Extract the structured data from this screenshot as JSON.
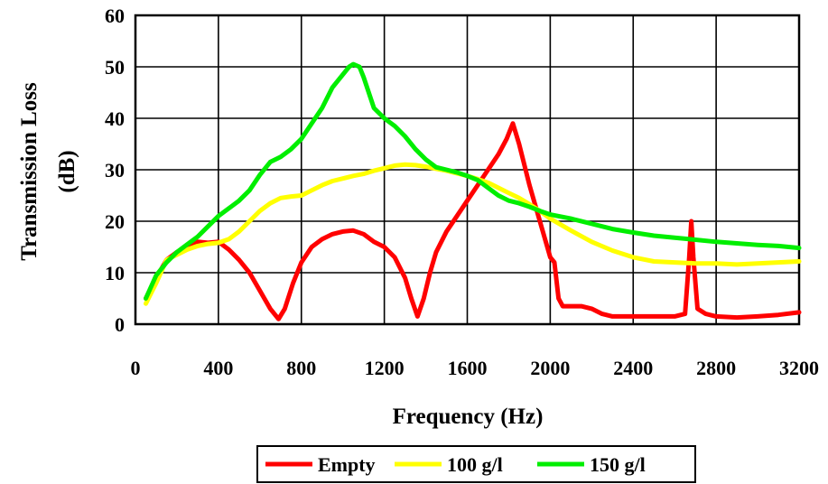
{
  "chart_data": {
    "type": "line",
    "title": "",
    "xlabel": "Frequency (Hz)",
    "ylabel_lines": [
      "Transmission Loss",
      "(dB)"
    ],
    "xlim": [
      0,
      3200
    ],
    "ylim": [
      0,
      60
    ],
    "x_ticks": [
      0,
      400,
      800,
      1200,
      1600,
      2000,
      2400,
      2800,
      3200
    ],
    "y_ticks": [
      0,
      10,
      20,
      30,
      40,
      50,
      60
    ],
    "x_tick_labels": [
      "0",
      "400",
      "800",
      "1200",
      "1600",
      "2000",
      "2400",
      "2800",
      "3200"
    ],
    "y_tick_labels": [
      "0",
      "10",
      "20",
      "30",
      "40",
      "50",
      "60"
    ],
    "grid": true,
    "legend_position": "bottom",
    "series": [
      {
        "name": "Empty",
        "color": "#ff0000",
        "points": [
          [
            50,
            5
          ],
          [
            100,
            9
          ],
          [
            150,
            12.5
          ],
          [
            200,
            14
          ],
          [
            250,
            15
          ],
          [
            300,
            16
          ],
          [
            350,
            15.8
          ],
          [
            400,
            16
          ],
          [
            450,
            14.5
          ],
          [
            500,
            12.5
          ],
          [
            550,
            10
          ],
          [
            600,
            6.5
          ],
          [
            650,
            3
          ],
          [
            690,
            1
          ],
          [
            720,
            3
          ],
          [
            760,
            8
          ],
          [
            800,
            12
          ],
          [
            850,
            15
          ],
          [
            900,
            16.5
          ],
          [
            950,
            17.5
          ],
          [
            1000,
            18
          ],
          [
            1050,
            18.2
          ],
          [
            1100,
            17.5
          ],
          [
            1150,
            16
          ],
          [
            1200,
            15
          ],
          [
            1250,
            13
          ],
          [
            1300,
            9
          ],
          [
            1330,
            5
          ],
          [
            1360,
            1.5
          ],
          [
            1390,
            5
          ],
          [
            1420,
            10
          ],
          [
            1450,
            14
          ],
          [
            1500,
            18
          ],
          [
            1550,
            21
          ],
          [
            1600,
            24
          ],
          [
            1650,
            27
          ],
          [
            1700,
            30
          ],
          [
            1750,
            33
          ],
          [
            1790,
            36
          ],
          [
            1820,
            39
          ],
          [
            1850,
            35
          ],
          [
            1900,
            27
          ],
          [
            1950,
            20
          ],
          [
            2000,
            13
          ],
          [
            2020,
            12
          ],
          [
            2040,
            5
          ],
          [
            2060,
            3.5
          ],
          [
            2100,
            3.5
          ],
          [
            2150,
            3.5
          ],
          [
            2200,
            3
          ],
          [
            2250,
            2
          ],
          [
            2300,
            1.5
          ],
          [
            2400,
            1.5
          ],
          [
            2500,
            1.5
          ],
          [
            2600,
            1.5
          ],
          [
            2650,
            2
          ],
          [
            2670,
            13
          ],
          [
            2680,
            20
          ],
          [
            2690,
            13
          ],
          [
            2710,
            3
          ],
          [
            2750,
            2
          ],
          [
            2800,
            1.5
          ],
          [
            2900,
            1.3
          ],
          [
            3000,
            1.5
          ],
          [
            3100,
            1.8
          ],
          [
            3200,
            2.3
          ]
        ]
      },
      {
        "name": "100 g/l",
        "color": "#ffff00",
        "points": [
          [
            50,
            4
          ],
          [
            100,
            8
          ],
          [
            150,
            12.5
          ],
          [
            200,
            13.5
          ],
          [
            250,
            14.5
          ],
          [
            300,
            15.2
          ],
          [
            350,
            15.6
          ],
          [
            400,
            15.8
          ],
          [
            450,
            16.5
          ],
          [
            500,
            18
          ],
          [
            550,
            20
          ],
          [
            600,
            22
          ],
          [
            650,
            23.5
          ],
          [
            700,
            24.5
          ],
          [
            750,
            24.8
          ],
          [
            800,
            25
          ],
          [
            850,
            26
          ],
          [
            900,
            27
          ],
          [
            950,
            27.8
          ],
          [
            1000,
            28.3
          ],
          [
            1050,
            28.8
          ],
          [
            1100,
            29.2
          ],
          [
            1150,
            29.8
          ],
          [
            1200,
            30.3
          ],
          [
            1250,
            30.8
          ],
          [
            1300,
            31
          ],
          [
            1350,
            30.9
          ],
          [
            1400,
            30.6
          ],
          [
            1450,
            30.2
          ],
          [
            1500,
            29.8
          ],
          [
            1550,
            29.3
          ],
          [
            1600,
            28.8
          ],
          [
            1650,
            28.2
          ],
          [
            1700,
            27.5
          ],
          [
            1750,
            26.5
          ],
          [
            1800,
            25.5
          ],
          [
            1850,
            24.5
          ],
          [
            1900,
            23.3
          ],
          [
            1950,
            22
          ],
          [
            2000,
            20.5
          ],
          [
            2100,
            18.2
          ],
          [
            2200,
            16
          ],
          [
            2300,
            14.3
          ],
          [
            2400,
            13
          ],
          [
            2500,
            12.2
          ],
          [
            2600,
            12
          ],
          [
            2700,
            11.8
          ],
          [
            2800,
            11.8
          ],
          [
            2900,
            11.6
          ],
          [
            3000,
            11.8
          ],
          [
            3100,
            12
          ],
          [
            3200,
            12.2
          ]
        ]
      },
      {
        "name": "150 g/l",
        "color": "#00ee00",
        "points": [
          [
            50,
            5
          ],
          [
            100,
            9.5
          ],
          [
            150,
            12
          ],
          [
            200,
            14
          ],
          [
            250,
            15.5
          ],
          [
            300,
            17
          ],
          [
            350,
            19
          ],
          [
            400,
            21
          ],
          [
            450,
            22.5
          ],
          [
            500,
            24
          ],
          [
            550,
            26
          ],
          [
            600,
            29
          ],
          [
            650,
            31.5
          ],
          [
            700,
            32.5
          ],
          [
            750,
            34
          ],
          [
            800,
            36
          ],
          [
            850,
            39
          ],
          [
            900,
            42
          ],
          [
            950,
            46
          ],
          [
            1000,
            48.5
          ],
          [
            1030,
            50
          ],
          [
            1050,
            50.5
          ],
          [
            1080,
            50
          ],
          [
            1100,
            48
          ],
          [
            1150,
            42
          ],
          [
            1200,
            40
          ],
          [
            1250,
            38.5
          ],
          [
            1300,
            36.5
          ],
          [
            1350,
            34
          ],
          [
            1400,
            32
          ],
          [
            1450,
            30.5
          ],
          [
            1500,
            30
          ],
          [
            1550,
            29.5
          ],
          [
            1600,
            28.8
          ],
          [
            1650,
            28
          ],
          [
            1700,
            26.5
          ],
          [
            1750,
            25
          ],
          [
            1800,
            24
          ],
          [
            1850,
            23.5
          ],
          [
            1900,
            22.8
          ],
          [
            1950,
            22
          ],
          [
            2000,
            21.3
          ],
          [
            2100,
            20.5
          ],
          [
            2200,
            19.5
          ],
          [
            2300,
            18.5
          ],
          [
            2400,
            17.8
          ],
          [
            2500,
            17.2
          ],
          [
            2600,
            16.8
          ],
          [
            2700,
            16.4
          ],
          [
            2800,
            16
          ],
          [
            2900,
            15.7
          ],
          [
            3000,
            15.4
          ],
          [
            3100,
            15.2
          ],
          [
            3200,
            14.8
          ]
        ]
      }
    ]
  }
}
